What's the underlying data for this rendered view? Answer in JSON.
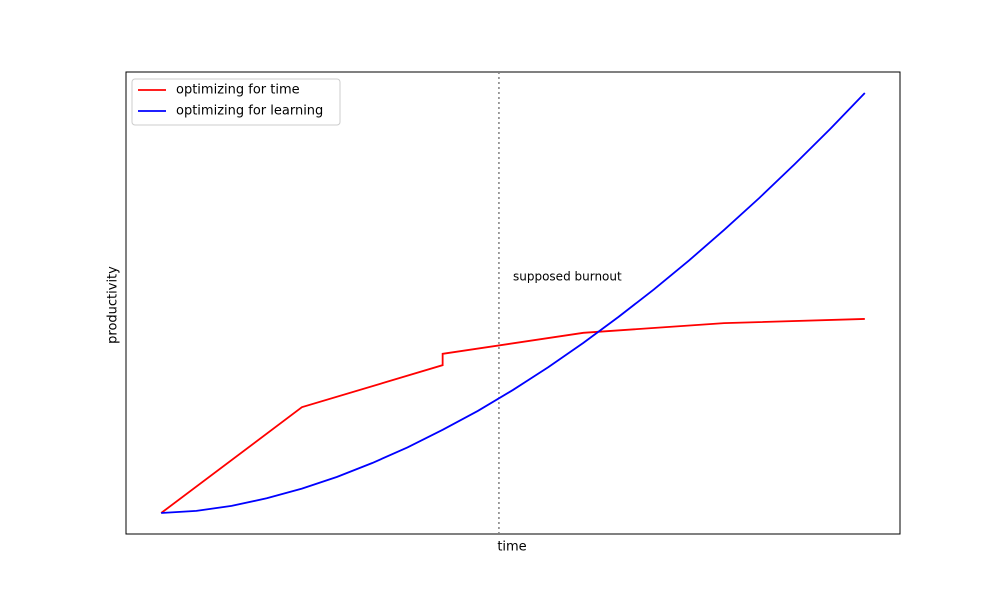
{
  "chart_data": {
    "type": "line",
    "xlabel": "time",
    "ylabel": "productivity",
    "xlim": [
      -0.5,
      10.5
    ],
    "ylim": [
      -5,
      105
    ],
    "legend": "upper left",
    "vline": {
      "x": 4.8,
      "color": "#808080",
      "style": "dotted"
    },
    "annotation": {
      "text": "supposed burnout",
      "x": 5.0,
      "y": 56.2,
      "color": "#808080"
    },
    "series": [
      {
        "name": "optimizing for time",
        "color": "#ff0000",
        "x": [
          0,
          2,
          4,
          4,
          6,
          8,
          10
        ],
        "values": [
          0,
          25.2,
          35.2,
          37.9,
          42.9,
          45.2,
          46.2
        ]
      },
      {
        "name": "optimizing for learning",
        "color": "#0000ff",
        "x": [
          0,
          0.5,
          1,
          1.5,
          2,
          2.5,
          3,
          3.5,
          4,
          4.5,
          5,
          5.5,
          6,
          6.5,
          7,
          7.5,
          8,
          8.5,
          9,
          9.5,
          10
        ],
        "values": [
          0,
          0.5,
          1.7,
          3.5,
          5.8,
          8.6,
          11.9,
          15.6,
          19.8,
          24.3,
          29.3,
          34.7,
          40.5,
          46.7,
          53.2,
          60.1,
          67.4,
          75.0,
          83.0,
          91.3,
          100
        ]
      }
    ]
  }
}
